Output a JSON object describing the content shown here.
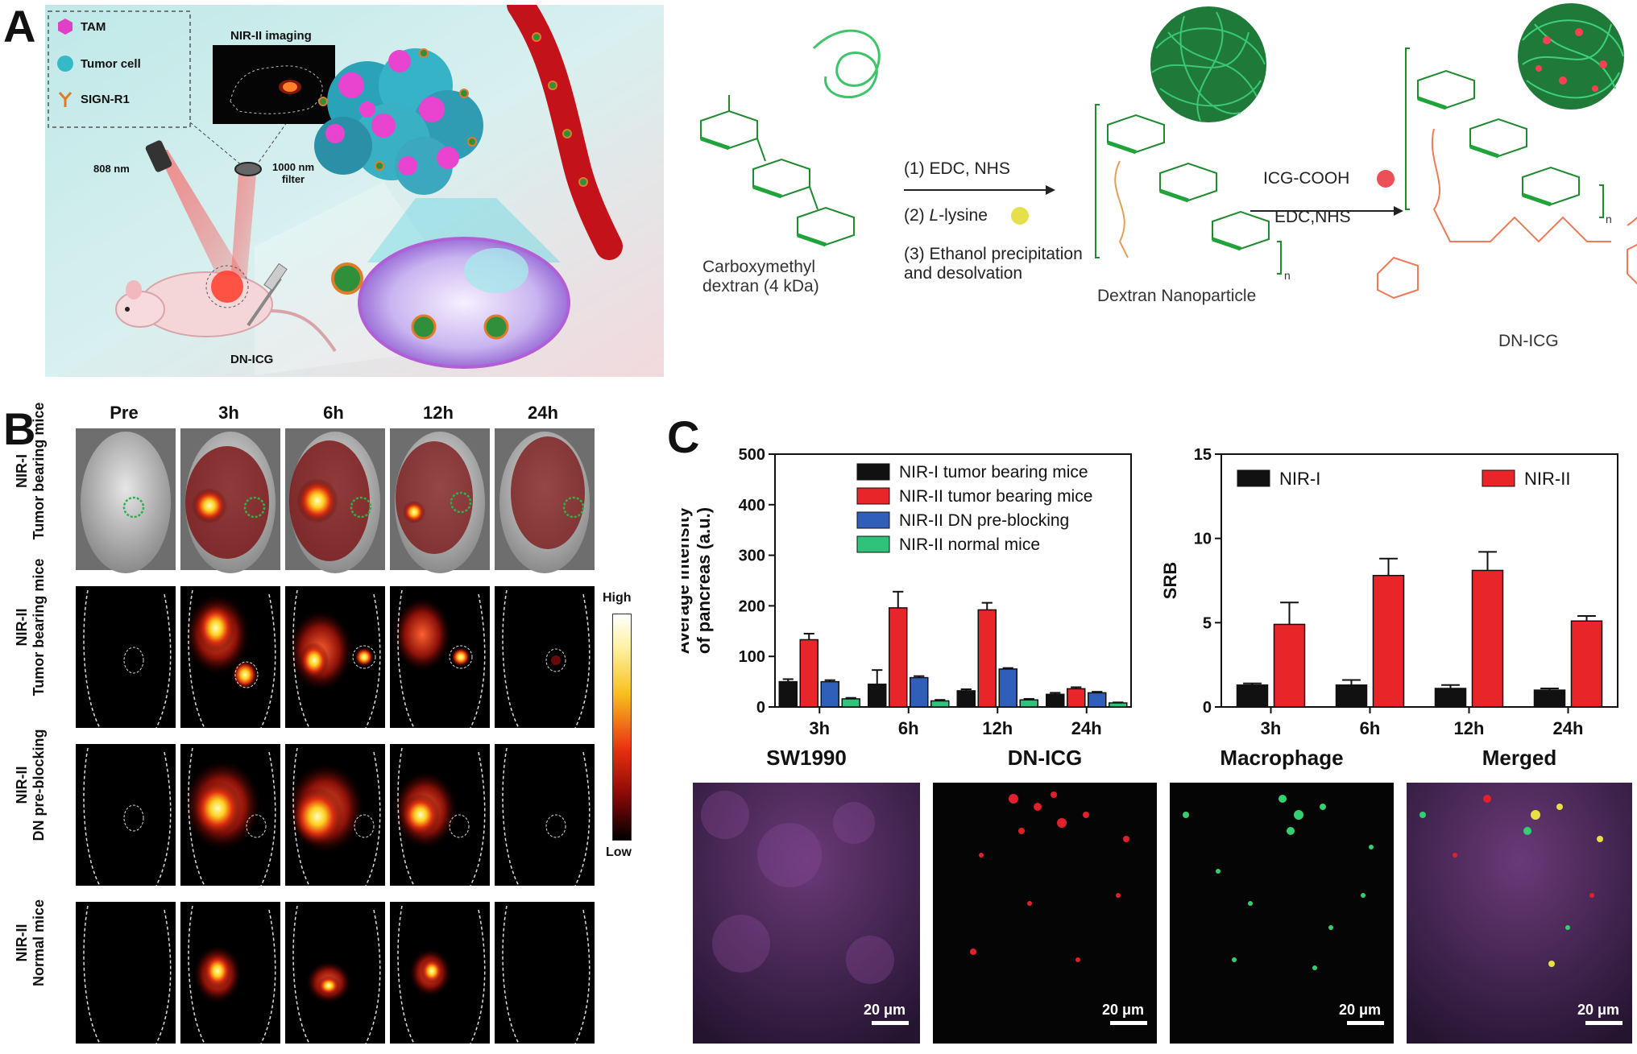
{
  "panel_labels": {
    "a": "A",
    "b": "B",
    "c": "C"
  },
  "panelA": {
    "legend": [
      {
        "label": "TAM",
        "icon": "tam-hexagon-icon",
        "color": "#e040c8"
      },
      {
        "label": "Tumor cell",
        "icon": "tumor-cell-icon",
        "color": "#35b9c9"
      },
      {
        "label": "SIGN-R1",
        "icon": "receptor-y-icon",
        "color": "#e07b2a"
      }
    ],
    "imaging_label": "NIR-II imaging",
    "laser_label": "808 nm",
    "filter_label": "1000 nm\nfilter",
    "agent_label": "DN-ICG",
    "scheme": {
      "start_label": "Carboxymethyl\ndextran (4 kDa)",
      "step1": "(1) EDC, NHS",
      "step2_prefix": "(2) ",
      "step2_italic": "L",
      "step2_suffix": "-lysine",
      "step3": "(3) Ethanol precipitation\nand desolvation",
      "mid_label": "Dextran Nanoparticle",
      "reagent1": "ICG-COOH",
      "reagent2": "EDC,NHS",
      "end_label": "DN-ICG",
      "subscript": "n"
    }
  },
  "panelB": {
    "time_headers": [
      "Pre",
      "3h",
      "6h",
      "12h",
      "24h"
    ],
    "rows": [
      {
        "line1": "NIR-I",
        "line2": "Tumor bearing mice"
      },
      {
        "line1": "NIR-II",
        "line2": "Tumor bearing mice"
      },
      {
        "line1": "NIR-II",
        "line2": "DN pre-blocking"
      },
      {
        "line1": "NIR-II",
        "line2": "Normal mice"
      }
    ],
    "colorbar": {
      "high": "High",
      "low": "Low"
    }
  },
  "chart_data": [
    {
      "type": "bar",
      "title": "",
      "xlabel": "",
      "ylabel": "Average intensity\nof pancreas (a.u.)",
      "ylim": [
        0,
        500
      ],
      "yticks": [
        0,
        100,
        200,
        300,
        400,
        500
      ],
      "categories": [
        "3h",
        "6h",
        "12h",
        "24h"
      ],
      "legend_position": "top-right",
      "series": [
        {
          "name": "NIR-I tumor bearing mice",
          "color": "#111111",
          "values": [
            50,
            45,
            32,
            25
          ],
          "errors": [
            5,
            28,
            3,
            3
          ]
        },
        {
          "name": "NIR-II tumor bearing mice",
          "color": "#e8262a",
          "values": [
            133,
            196,
            192,
            36
          ],
          "errors": [
            12,
            32,
            14,
            3
          ]
        },
        {
          "name": "NIR-II DN pre-blocking",
          "color": "#2f5fb8",
          "values": [
            50,
            58,
            75,
            28
          ],
          "errors": [
            3,
            3,
            2,
            2
          ]
        },
        {
          "name": "NIR-II normal mice",
          "color": "#2ec27a",
          "values": [
            16,
            12,
            14,
            8
          ],
          "errors": [
            2,
            2,
            2,
            1
          ]
        }
      ]
    },
    {
      "type": "bar",
      "title": "",
      "xlabel": "",
      "ylabel": "SRB",
      "ylim": [
        0,
        15
      ],
      "yticks": [
        0,
        5,
        10,
        15
      ],
      "categories": [
        "3h",
        "6h",
        "12h",
        "24h"
      ],
      "legend_position": "top",
      "series": [
        {
          "name": "NIR-I",
          "color": "#111111",
          "values": [
            1.3,
            1.3,
            1.1,
            1.0
          ],
          "errors": [
            0.1,
            0.3,
            0.2,
            0.1
          ]
        },
        {
          "name": "NIR-II",
          "color": "#e8262a",
          "values": [
            4.9,
            7.8,
            8.1,
            5.1
          ],
          "errors": [
            1.3,
            1.0,
            1.1,
            0.3
          ]
        }
      ]
    }
  ],
  "panelC_images": {
    "titles": [
      "SW1990",
      "DN-ICG",
      "Macrophage",
      "Merged"
    ],
    "scale_label": "20 μm"
  }
}
